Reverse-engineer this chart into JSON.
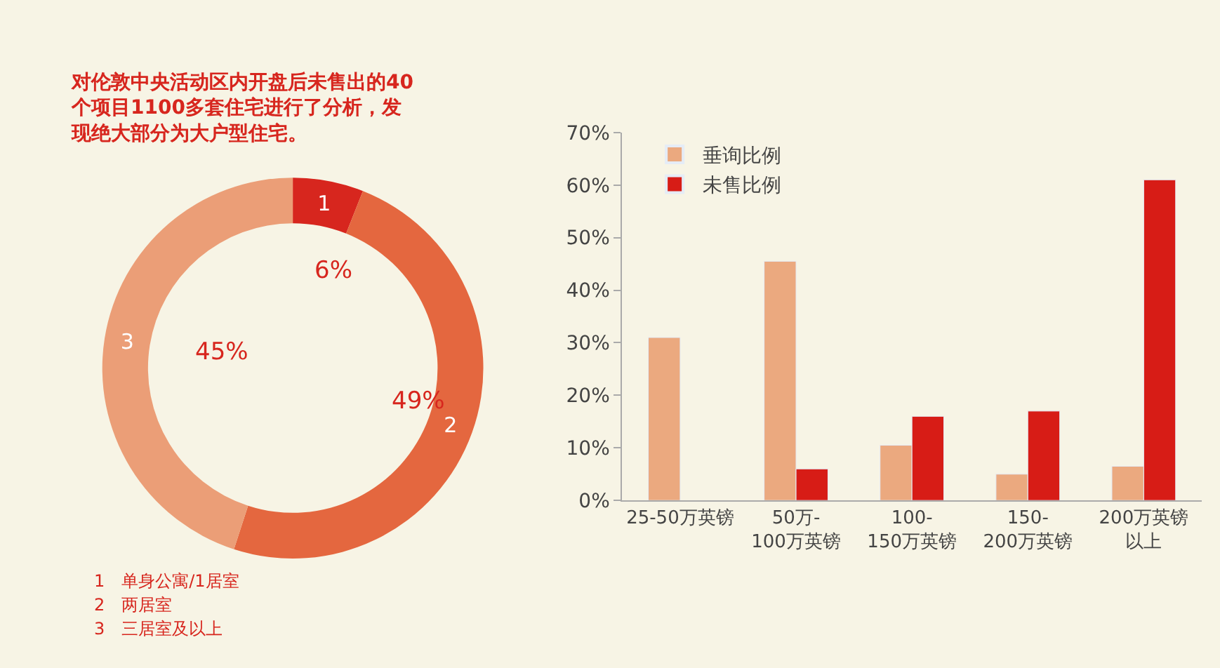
{
  "chart_data": [
    {
      "type": "donut",
      "title": "对伦敦中央活动区内开盘后未售出的40个项目1100多套住宅进行了分析，发现绝大部分为大户型住宅。",
      "categories": [
        "1",
        "2",
        "3"
      ],
      "values": [
        6,
        49,
        45
      ],
      "colors": [
        "#d7261e",
        "#e4673f",
        "#eb9e77"
      ],
      "value_labels": [
        "6%",
        "49%",
        "45%"
      ],
      "annotations": [
        "1　单身公寓/1居室",
        "2　两居室",
        "3　三居室及以上"
      ]
    },
    {
      "type": "bar",
      "categories": [
        "25-50万英镑",
        "50万-100万英镑",
        "100-150万英镑",
        "150-200万英镑",
        "200万英镑以上"
      ],
      "series": [
        {
          "name": "垂询比例",
          "color": "#eba97f",
          "values": [
            31,
            45.5,
            10.5,
            5,
            6.5
          ]
        },
        {
          "name": "未售比例",
          "color": "#d71c16",
          "values": [
            null,
            6,
            16,
            17,
            61
          ]
        }
      ],
      "ylim": [
        0,
        70
      ],
      "yticks": [
        {
          "value": 0,
          "label": "0%"
        },
        {
          "value": 10,
          "label": "10%"
        },
        {
          "value": 20,
          "label": "20%"
        },
        {
          "value": 30,
          "label": "30%"
        },
        {
          "value": 40,
          "label": "40%"
        },
        {
          "value": 50,
          "label": "50%"
        },
        {
          "value": 60,
          "label": "60%"
        },
        {
          "value": 70,
          "label": "70%"
        }
      ],
      "grid": false,
      "legend": "top left"
    }
  ]
}
